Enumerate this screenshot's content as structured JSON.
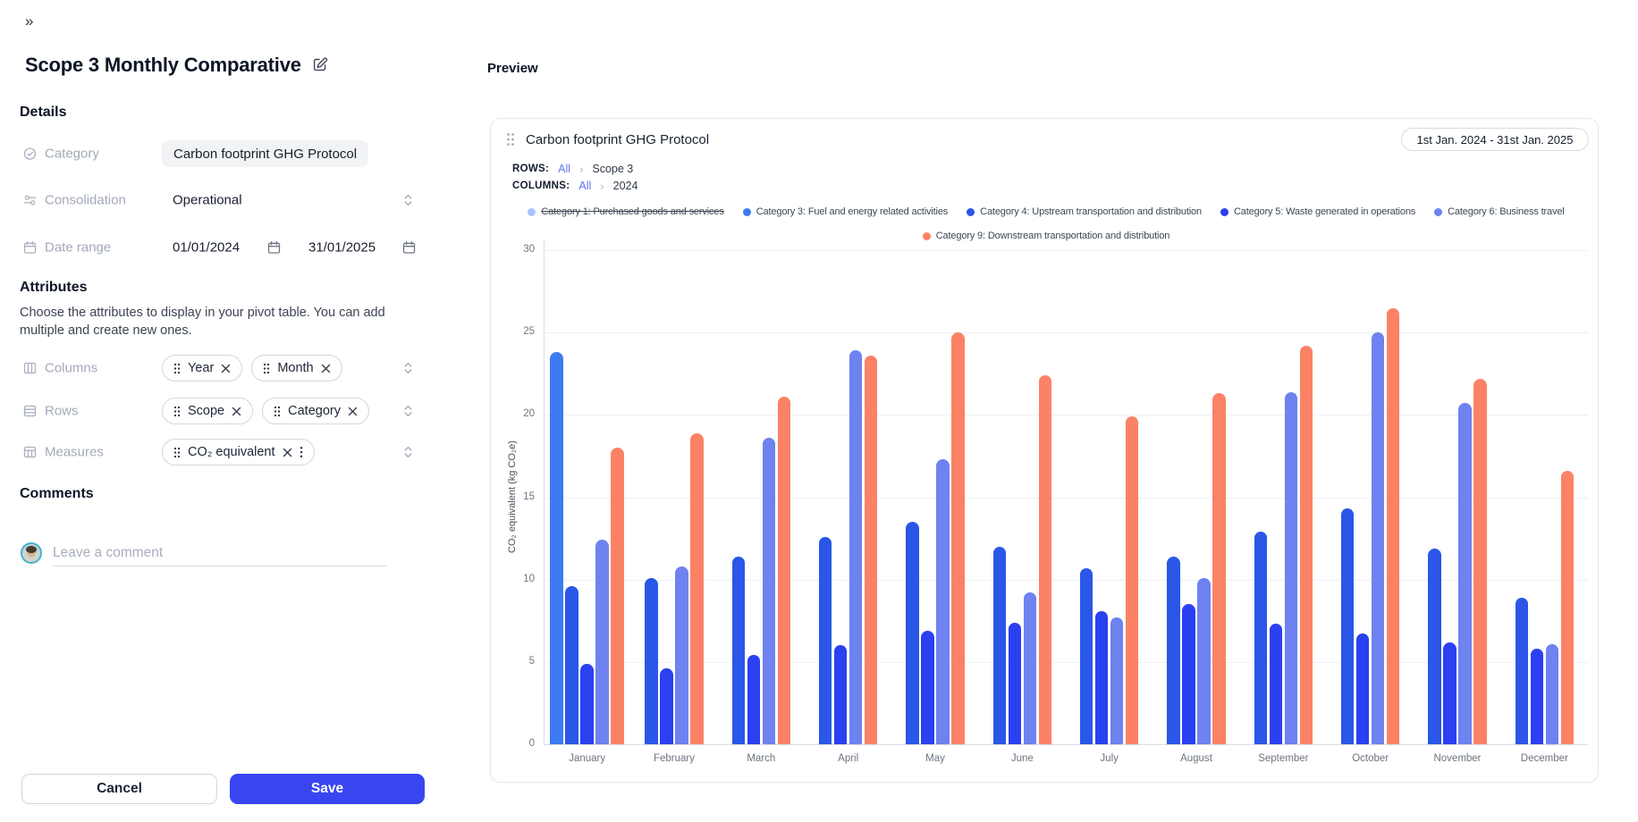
{
  "sidebar": {
    "collapse_icon": "»",
    "title": "Scope 3 Monthly Comparative",
    "details_heading": "Details",
    "category_label": "Category",
    "category_value": "Carbon footprint GHG Protocol",
    "consolidation_label": "Consolidation",
    "consolidation_value": "Operational",
    "date_range_label": "Date range",
    "date_start": "01/01/2024",
    "date_end": "31/01/2025",
    "attributes_heading": "Attributes",
    "attributes_description": "Choose the attributes to display in your pivot table. You can add multiple and create new ones.",
    "columns_label": "Columns",
    "columns_chips": [
      "Year",
      "Month"
    ],
    "rows_label": "Rows",
    "rows_chips": [
      "Scope",
      "Category"
    ],
    "measures_label": "Measures",
    "measures_chips": [
      "CO₂ equivalent"
    ],
    "comments_heading": "Comments",
    "comment_placeholder": "Leave a comment",
    "cancel_label": "Cancel",
    "save_label": "Save",
    "accent_color": "#3a45f2"
  },
  "preview": {
    "heading": "Preview",
    "card_title": "Carbon footprint GHG Protocol",
    "date_range": "1st Jan. 2024 - 31st Jan. 2025",
    "rows_label": "ROWS:",
    "rows_all": "All",
    "rows_value": "Scope 3",
    "columns_label": "COLUMNS:",
    "columns_all": "All",
    "columns_value": "2024",
    "breadcrumb_separator": "›"
  },
  "chart_data": {
    "type": "bar",
    "title": "Carbon footprint GHG Protocol",
    "ylabel": "CO₂ equivalent (kg CO₂e)",
    "ylim": [
      0,
      30
    ],
    "yticks": [
      0,
      5,
      10,
      15,
      20,
      25,
      30
    ],
    "grid": true,
    "legend_position": "top",
    "categories": [
      "January",
      "February",
      "March",
      "April",
      "May",
      "June",
      "July",
      "August",
      "September",
      "October",
      "November",
      "December"
    ],
    "series": [
      {
        "name": "Category 1: Purchased goods and services",
        "color": "#a6c4fa",
        "hidden": true,
        "values": [
          null,
          null,
          null,
          null,
          null,
          null,
          null,
          null,
          null,
          null,
          null,
          null
        ]
      },
      {
        "name": "Category 3: Fuel and energy related activities",
        "color": "#3d7af4",
        "values": [
          23.8,
          null,
          null,
          null,
          null,
          null,
          null,
          null,
          null,
          null,
          null,
          null
        ]
      },
      {
        "name": "Category 4: Upstream transportation and distribution",
        "color": "#2a57e8",
        "values": [
          9.6,
          10.1,
          11.4,
          12.6,
          13.5,
          12.0,
          10.7,
          11.4,
          12.9,
          14.3,
          11.9,
          8.9
        ]
      },
      {
        "name": "Category 5: Waste generated in operations",
        "color": "#2b40f0",
        "values": [
          4.9,
          4.6,
          5.4,
          6.0,
          6.9,
          7.4,
          8.1,
          8.5,
          7.3,
          6.7,
          6.2,
          5.8
        ]
      },
      {
        "name": "Category 6: Business travel",
        "color": "#6e82f0",
        "values": [
          12.4,
          10.8,
          18.6,
          23.9,
          17.3,
          9.2,
          7.7,
          10.1,
          21.4,
          25.0,
          20.7,
          6.1
        ]
      },
      {
        "name": "Category 9: Downstream transportation and distribution",
        "color": "#fc8266",
        "values": [
          18.0,
          18.9,
          21.1,
          23.6,
          25.0,
          22.4,
          19.9,
          21.3,
          24.2,
          26.5,
          22.2,
          16.6
        ]
      }
    ]
  }
}
